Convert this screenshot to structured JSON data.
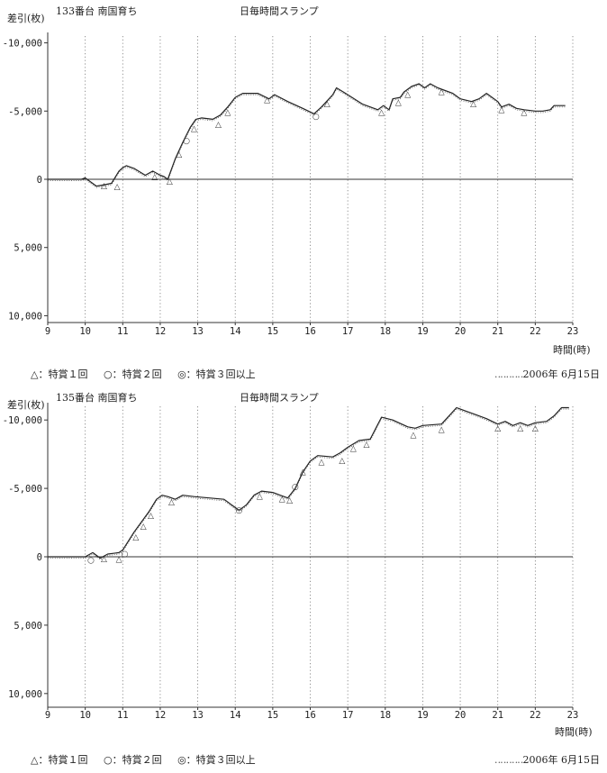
{
  "chart_data": [
    {
      "type": "line",
      "machine": "133番台 南国育ち",
      "title": "日毎時間スランプ",
      "ylabel": "差引(枚)",
      "xlabel": "時間(時)",
      "xlim": [
        9,
        23
      ],
      "ylim": [
        10500,
        -10500
      ],
      "x_ticks": [
        "9",
        "10",
        "11",
        "12",
        "13",
        "14",
        "15",
        "16",
        "17",
        "18",
        "19",
        "20",
        "21",
        "22",
        "23"
      ],
      "y_ticks": [
        -10000,
        -5000,
        0,
        5000,
        10000
      ],
      "y_tick_labels": [
        "-10,000",
        "-5,000",
        "0",
        "5,000",
        "10,000"
      ],
      "grid": "vertical dotted lines at each hour",
      "legend": [
        "△：特賞１回",
        "○：特賞２回",
        "◎：特賞３回以上"
      ],
      "date": "2006年  6月15日",
      "series": [
        {
          "x": [
            9.0,
            9.9,
            10.0,
            10.3,
            10.5,
            10.7,
            10.9,
            11.0,
            11.1,
            11.3,
            11.6,
            11.8,
            12.0,
            12.1,
            12.2,
            12.4,
            12.6,
            12.8,
            12.95,
            13.1,
            13.4,
            13.6,
            13.8,
            14.0,
            14.2,
            14.6,
            14.9,
            15.05,
            15.4,
            15.8,
            16.1,
            16.3,
            16.6,
            16.7,
            17.0,
            17.4,
            17.8,
            17.95,
            18.1,
            18.2,
            18.4,
            18.5,
            18.7,
            18.9,
            19.05,
            19.2,
            19.4,
            19.8,
            20.0,
            20.3,
            20.5,
            20.7,
            21.0,
            21.1,
            21.3,
            21.5,
            21.7,
            22.0,
            22.2,
            22.4,
            22.5,
            22.8
          ],
          "y": [
            0,
            0,
            -100,
            500,
            400,
            300,
            -600,
            -850,
            -1000,
            -800,
            -300,
            -600,
            -300,
            -200,
            0,
            -1500,
            -2700,
            -3800,
            -4400,
            -4500,
            -4400,
            -4700,
            -5300,
            -6000,
            -6300,
            -6300,
            -5900,
            -6200,
            -5700,
            -5200,
            -4800,
            -5300,
            -6200,
            -6700,
            -6200,
            -5500,
            -5100,
            -5400,
            -5100,
            -5900,
            -6000,
            -6400,
            -6800,
            -7000,
            -6700,
            -7000,
            -6700,
            -6300,
            -5900,
            -5700,
            -5900,
            -6300,
            -5700,
            -5300,
            -5500,
            -5200,
            -5100,
            -5000,
            -5000,
            -5100,
            -5400,
            -5400
          ]
        }
      ],
      "markers": [
        {
          "x": 10.5,
          "y": 400,
          "symbol": "△"
        },
        {
          "x": 10.85,
          "y": 450,
          "symbol": "△"
        },
        {
          "x": 11.85,
          "y": -250,
          "symbol": "△"
        },
        {
          "x": 12.25,
          "y": 50,
          "symbol": "△"
        },
        {
          "x": 12.5,
          "y": -1900,
          "symbol": "△"
        },
        {
          "x": 12.7,
          "y": -2900,
          "symbol": "○"
        },
        {
          "x": 12.9,
          "y": -3800,
          "symbol": "△"
        },
        {
          "x": 13.55,
          "y": -4100,
          "symbol": "△"
        },
        {
          "x": 13.8,
          "y": -5000,
          "symbol": "△"
        },
        {
          "x": 14.85,
          "y": -5900,
          "symbol": "△"
        },
        {
          "x": 16.15,
          "y": -4700,
          "symbol": "○"
        },
        {
          "x": 16.45,
          "y": -5600,
          "symbol": "△"
        },
        {
          "x": 17.9,
          "y": -5000,
          "symbol": "△"
        },
        {
          "x": 18.35,
          "y": -5700,
          "symbol": "△"
        },
        {
          "x": 18.6,
          "y": -6300,
          "symbol": "△"
        },
        {
          "x": 19.5,
          "y": -6500,
          "symbol": "△"
        },
        {
          "x": 20.35,
          "y": -5600,
          "symbol": "△"
        },
        {
          "x": 21.1,
          "y": -5200,
          "symbol": "△"
        },
        {
          "x": 21.7,
          "y": -5000,
          "symbol": "△"
        }
      ]
    },
    {
      "type": "line",
      "machine": "135番台 南国育ち",
      "title": "日毎時間スランプ",
      "ylabel": "差引(枚)",
      "xlabel": "時間(時)",
      "xlim": [
        9,
        23
      ],
      "ylim": [
        11000,
        -11000
      ],
      "x_ticks": [
        "9",
        "10",
        "11",
        "12",
        "13",
        "14",
        "15",
        "16",
        "17",
        "18",
        "19",
        "20",
        "21",
        "22",
        "23"
      ],
      "y_ticks": [
        -10000,
        -5000,
        0,
        5000,
        10000
      ],
      "y_tick_labels": [
        "-10,000",
        "-5,000",
        "0",
        "5,000",
        "10,000"
      ],
      "grid": "vertical dotted lines at each hour",
      "legend": [
        "△：特賞１回",
        "○：特賞２回",
        "◎：特賞３回以上"
      ],
      "date": "2006年  6月15日",
      "series": [
        {
          "x": [
            9.0,
            10.0,
            10.2,
            10.4,
            10.6,
            10.9,
            11.0,
            11.3,
            11.7,
            11.9,
            12.05,
            12.2,
            12.4,
            12.6,
            12.9,
            13.3,
            13.7,
            14.1,
            14.3,
            14.5,
            14.7,
            15.0,
            15.2,
            15.4,
            15.6,
            15.8,
            16.0,
            16.2,
            16.6,
            16.8,
            17.0,
            17.3,
            17.6,
            17.9,
            18.2,
            18.6,
            18.8,
            19.0,
            19.5,
            19.9,
            20.1,
            20.4,
            20.7,
            21.0,
            21.2,
            21.4,
            21.6,
            21.8,
            22.0,
            22.3,
            22.5,
            22.7,
            22.9
          ],
          "y": [
            0,
            0,
            -300,
            100,
            -200,
            -300,
            -500,
            -1800,
            -3300,
            -4200,
            -4500,
            -4400,
            -4200,
            -4500,
            -4400,
            -4300,
            -4200,
            -3400,
            -3800,
            -4500,
            -4800,
            -4700,
            -4500,
            -4300,
            -5000,
            -6200,
            -7000,
            -7400,
            -7300,
            -7600,
            -8000,
            -8500,
            -8600,
            -10200,
            -10000,
            -9500,
            -9400,
            -9600,
            -9700,
            -10900,
            -10700,
            -10400,
            -10100,
            -9700,
            -9900,
            -9600,
            -9800,
            -9600,
            -9800,
            -9900,
            -10300,
            -10900,
            -10900
          ]
        }
      ],
      "markers": [
        {
          "x": 10.15,
          "y": 150,
          "symbol": "○"
        },
        {
          "x": 10.5,
          "y": 50,
          "symbol": "△"
        },
        {
          "x": 10.9,
          "y": 100,
          "symbol": "△"
        },
        {
          "x": 11.05,
          "y": -300,
          "symbol": "○"
        },
        {
          "x": 11.35,
          "y": -1500,
          "symbol": "△"
        },
        {
          "x": 11.55,
          "y": -2300,
          "symbol": "△"
        },
        {
          "x": 11.75,
          "y": -3100,
          "symbol": "△"
        },
        {
          "x": 12.3,
          "y": -4100,
          "symbol": "△"
        },
        {
          "x": 14.1,
          "y": -3500,
          "symbol": "○"
        },
        {
          "x": 14.65,
          "y": -4500,
          "symbol": "△"
        },
        {
          "x": 15.25,
          "y": -4300,
          "symbol": "△"
        },
        {
          "x": 15.45,
          "y": -4200,
          "symbol": "△"
        },
        {
          "x": 15.6,
          "y": -5200,
          "symbol": "○"
        },
        {
          "x": 15.8,
          "y": -6300,
          "symbol": "△"
        },
        {
          "x": 16.3,
          "y": -7000,
          "symbol": "△"
        },
        {
          "x": 16.85,
          "y": -7100,
          "symbol": "△"
        },
        {
          "x": 17.15,
          "y": -8000,
          "symbol": "△"
        },
        {
          "x": 17.5,
          "y": -8300,
          "symbol": "△"
        },
        {
          "x": 18.75,
          "y": -9000,
          "symbol": "△"
        },
        {
          "x": 19.5,
          "y": -9400,
          "symbol": "△"
        },
        {
          "x": 21.0,
          "y": -9500,
          "symbol": "△"
        },
        {
          "x": 21.6,
          "y": -9500,
          "symbol": "△"
        },
        {
          "x": 22.0,
          "y": -9500,
          "symbol": "△"
        }
      ]
    }
  ]
}
